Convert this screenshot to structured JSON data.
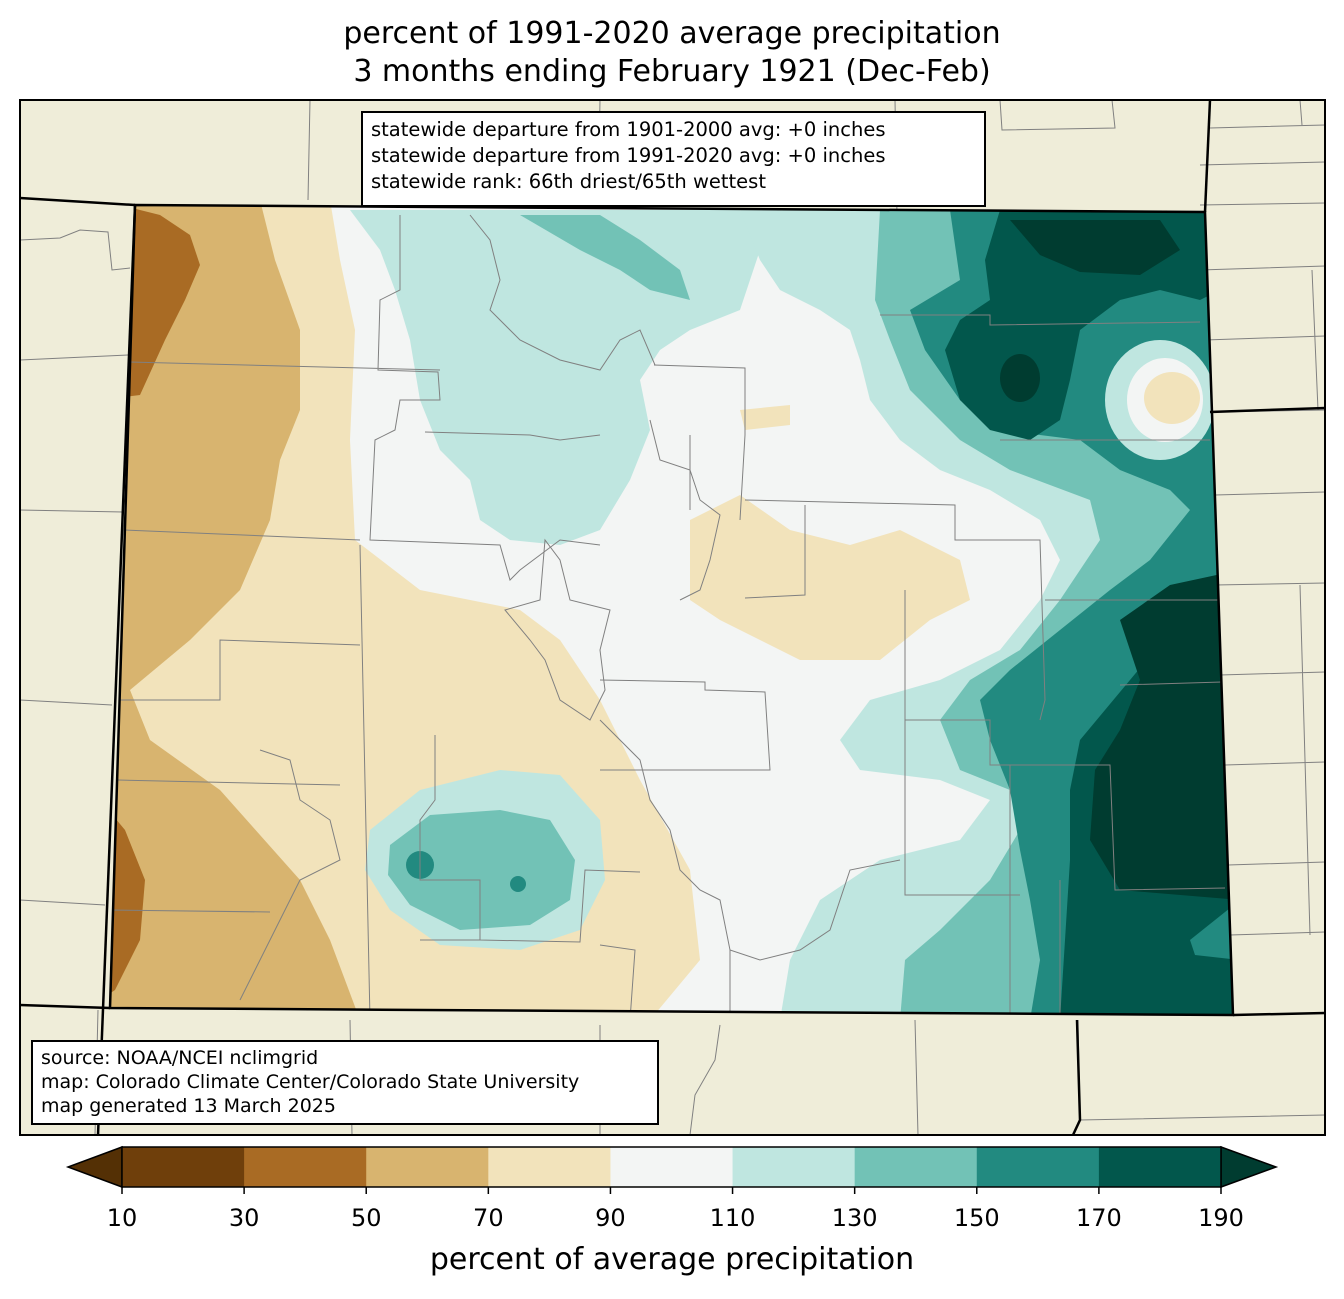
{
  "title": {
    "line1": "percent of 1991-2020 average precipitation",
    "line2": "3 months ending February 1921 (Dec-Feb)"
  },
  "stats": {
    "line1": "statewide departure from 1901-2000 avg: +0 inches",
    "line2": "statewide departure from 1991-2020 avg: +0 inches",
    "line3": "statewide rank: 66th driest/65th wettest"
  },
  "source": {
    "line1": "source: NOAA/NCEI nclimgrid",
    "line2": "map: Colorado Climate Center/Colorado State University",
    "line3": "map generated 13 March 2025"
  },
  "colorbar": {
    "label": "percent of average precipitation",
    "ticks": [
      "10",
      "30",
      "50",
      "70",
      "90",
      "110",
      "130",
      "150",
      "170",
      "190"
    ],
    "under_color": "#543005",
    "over_color": "#003c30",
    "bins": [
      {
        "range": "10-30",
        "color": "#6f3f0b"
      },
      {
        "range": "30-50",
        "color": "#a96b24"
      },
      {
        "range": "50-70",
        "color": "#d8b46f"
      },
      {
        "range": "70-90",
        "color": "#f2e3bb"
      },
      {
        "range": "90-110",
        "color": "#f3f5f4"
      },
      {
        "range": "110-130",
        "color": "#bfe6e0"
      },
      {
        "range": "130-150",
        "color": "#72c2b6"
      },
      {
        "range": "150-170",
        "color": "#228a80"
      },
      {
        "range": "170-190",
        "color": "#02574c"
      }
    ]
  },
  "colors": {
    "land": "#efedd9",
    "county_lines": "#808080",
    "state_lines": "#000000"
  }
}
